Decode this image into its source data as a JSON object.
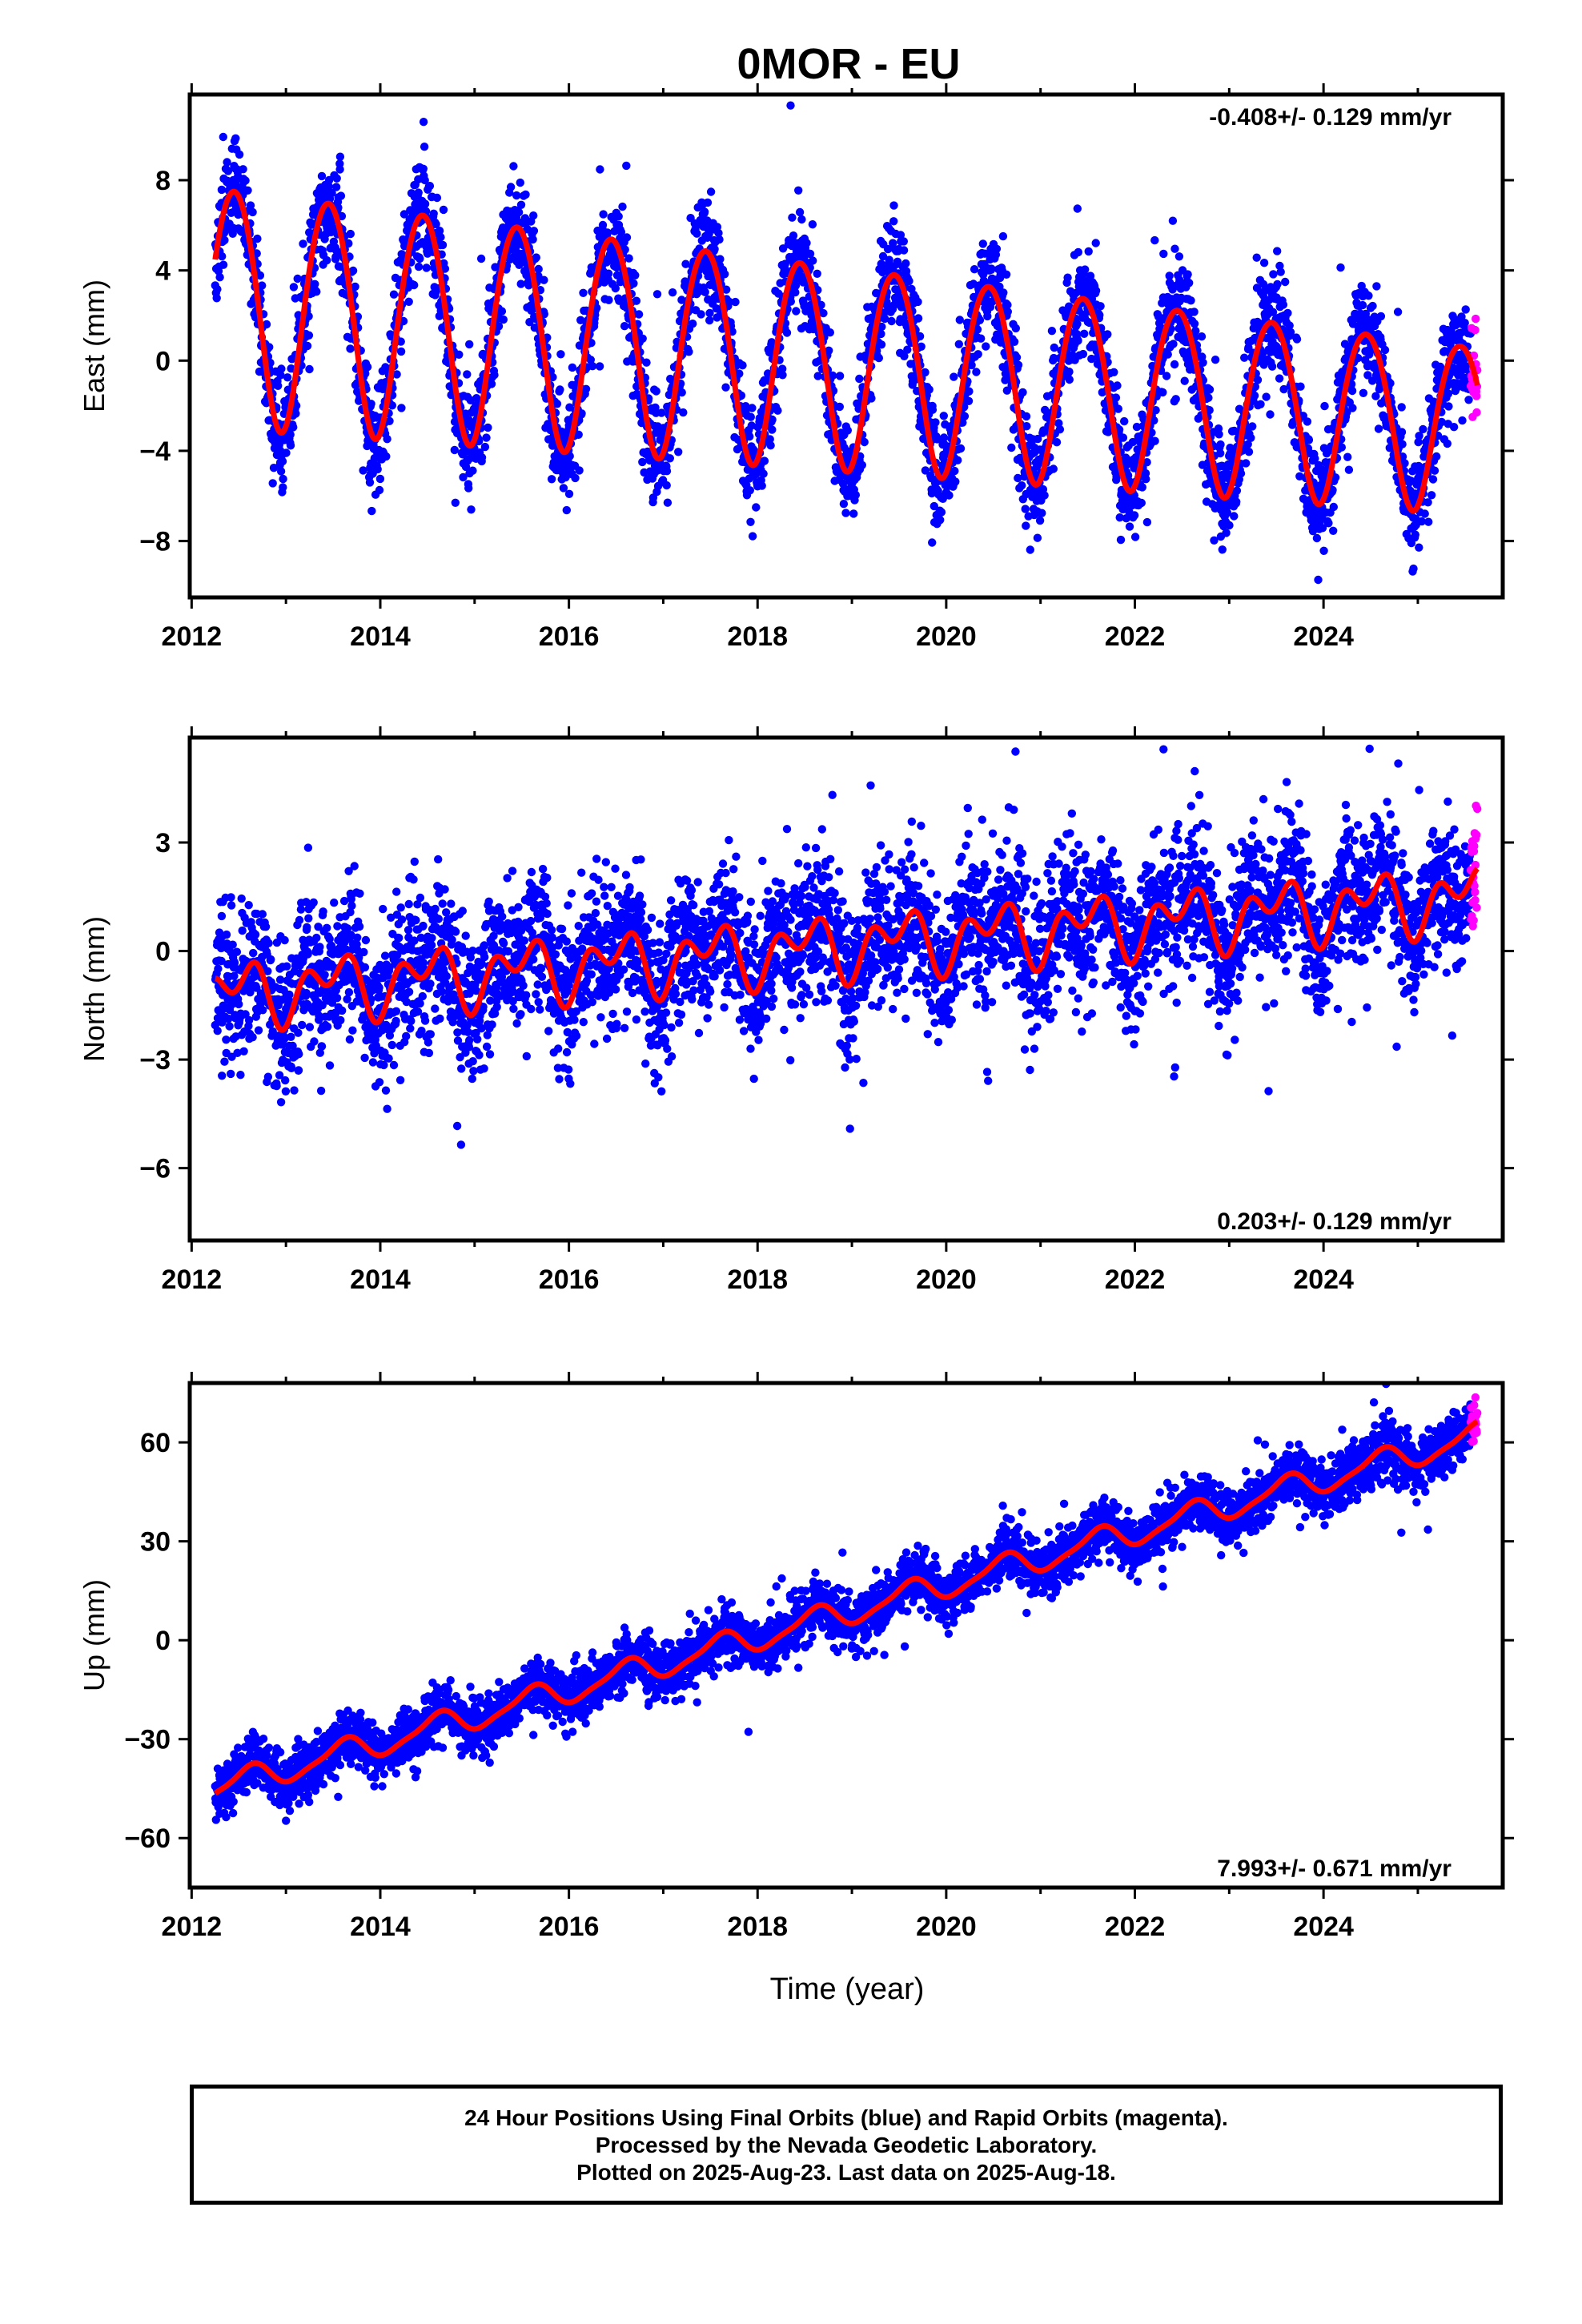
{
  "title": "0MOR - EU",
  "xlabel": "Time (year)",
  "footer": {
    "line1": "24 Hour Positions Using Final Orbits (blue) and Rapid Orbits (magenta).",
    "line2": "Processed by the Nevada Geodetic Laboratory.",
    "line3": "Plotted on 2025-Aug-23. Last data on 2025-Aug-18."
  },
  "colors": {
    "final": "#0000ff",
    "rapid": "#ff00ff",
    "model": "#ff0000",
    "frame": "#000000"
  },
  "chart_data": [
    {
      "type": "scatter",
      "component": "east",
      "ylabel": "East (mm)",
      "rate_text": "-0.408+/- 0.129 mm/yr",
      "rate_position": "top-right",
      "xlim": [
        2011.98,
        2025.9
      ],
      "ylim": [
        -10.5,
        11.8
      ],
      "xticks": [
        2012,
        2014,
        2016,
        2018,
        2020,
        2022,
        2024
      ],
      "yticks": [
        -8,
        -4,
        0,
        4,
        8
      ],
      "ytick_labels": [
        "−8",
        "−4",
        "0",
        "4",
        "8"
      ],
      "data_start": 2012.25,
      "data_end": 2025.63,
      "rapid_start": 2025.56,
      "model": {
        "offset": 2.6,
        "rate": -0.408,
        "annual_cos_start": 5.3,
        "annual_cos_end": 3.7,
        "annual_peak_year_fraction": 0.45,
        "semiannual_amp": 0.3
      },
      "noise_std": 1.2,
      "seed": 11
    },
    {
      "type": "scatter",
      "component": "north",
      "ylabel": "North (mm)",
      "rate_text": "0.203+/- 0.129 mm/yr",
      "rate_position": "bottom-right",
      "xlim": [
        2011.98,
        2025.9
      ],
      "ylim": [
        -8.0,
        5.9
      ],
      "xticks": [
        2012,
        2014,
        2016,
        2018,
        2020,
        2022,
        2024
      ],
      "yticks": [
        -6,
        -3,
        0,
        3
      ],
      "ytick_labels": [
        "−6",
        "−3",
        "0",
        "3"
      ],
      "data_start": 2012.25,
      "data_end": 2025.63,
      "rapid_start": 2025.56,
      "model": {
        "offset": -1.2,
        "rate": 0.203,
        "annual_cos_start": 0.6,
        "annual_cos_end": 0.6,
        "annual_peak_year_fraction": 0.5,
        "semiannual_amp": 0.55
      },
      "noise_std": 1.0,
      "seed": 23
    },
    {
      "type": "scatter",
      "component": "up",
      "ylabel": "Up (mm)",
      "rate_text": "7.993+/- 0.671 mm/yr",
      "rate_position": "bottom-right",
      "xlim": [
        2011.98,
        2025.9
      ],
      "ylim": [
        -75,
        78
      ],
      "xticks": [
        2012,
        2014,
        2016,
        2018,
        2020,
        2022,
        2024
      ],
      "yticks": [
        -60,
        -30,
        0,
        30,
        60
      ],
      "ytick_labels": [
        "−60",
        "−30",
        "0",
        "30",
        "60"
      ],
      "data_start": 2012.25,
      "data_end": 2025.63,
      "rapid_start": 2025.56,
      "model": {
        "offset": -45,
        "rate": 7.993,
        "annual_cos_start": 3.8,
        "annual_cos_end": 3.8,
        "annual_peak_year_fraction": 0.6,
        "semiannual_amp": 1.0
      },
      "noise_std": 4.0,
      "seed": 37
    }
  ]
}
